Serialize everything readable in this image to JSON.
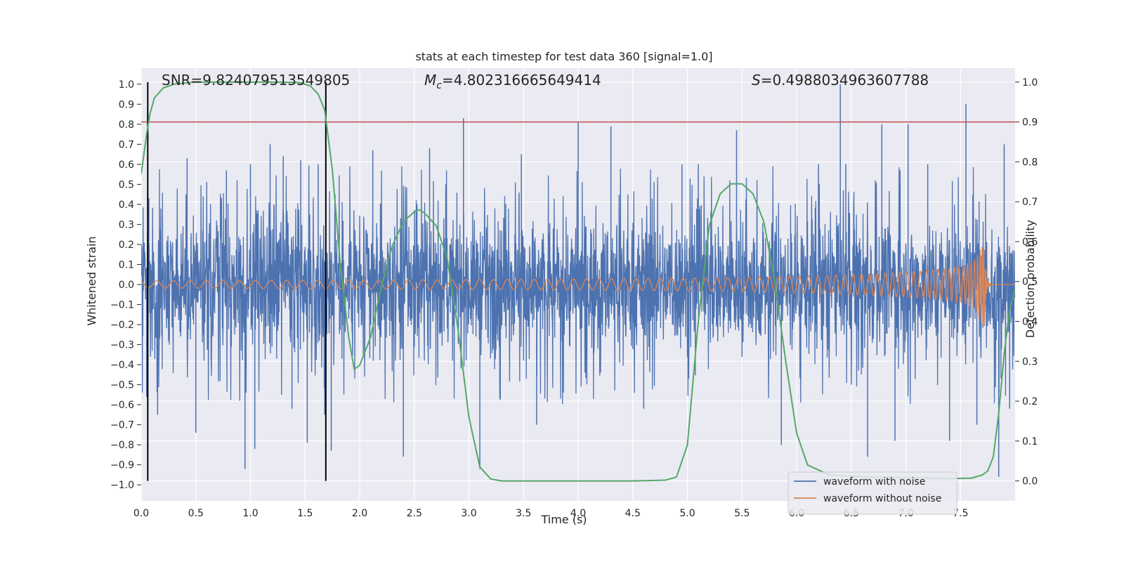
{
  "chart_data": {
    "type": "line",
    "title": "stats at each timestep for test data 360 [signal=1.0]",
    "xlabel": "Time (s)",
    "ylabel": "Whitened strain",
    "y2label": "Detection probability",
    "xlim": [
      0.0,
      8.0
    ],
    "ylim": [
      -1.08,
      1.08
    ],
    "y2lim": [
      -0.05,
      1.035
    ],
    "x_ticks": [
      0.0,
      0.5,
      1.0,
      1.5,
      2.0,
      2.5,
      3.0,
      3.5,
      4.0,
      4.5,
      5.0,
      5.5,
      6.0,
      6.5,
      7.0,
      7.5
    ],
    "x_tick_labels": [
      "0.0",
      "0.5",
      "1.0",
      "1.5",
      "2.0",
      "2.5",
      "3.0",
      "3.5",
      "4.0",
      "4.5",
      "5.0",
      "5.5",
      "6.0",
      "6.5",
      "7.0",
      "7.5"
    ],
    "y_ticks": [
      -1.0,
      -0.9,
      -0.8,
      -0.7,
      -0.6,
      -0.5,
      -0.4,
      -0.3,
      -0.2,
      -0.1,
      0.0,
      0.1,
      0.2,
      0.3,
      0.4,
      0.5,
      0.6,
      0.7,
      0.8,
      0.9,
      1.0
    ],
    "y_tick_labels": [
      "−1.0",
      "−0.9",
      "−0.8",
      "−0.7",
      "−0.6",
      "−0.5",
      "−0.4",
      "−0.3",
      "−0.2",
      "−0.1",
      "0.0",
      "0.1",
      "0.2",
      "0.3",
      "0.4",
      "0.5",
      "0.6",
      "0.7",
      "0.8",
      "0.9",
      "1.0"
    ],
    "y2_ticks": [
      0.0,
      0.1,
      0.2,
      0.3,
      0.4,
      0.5,
      0.6,
      0.7,
      0.8,
      0.9,
      1.0
    ],
    "y2_tick_labels": [
      "0.0",
      "0.1",
      "0.2",
      "0.3",
      "0.4",
      "0.5",
      "0.6",
      "0.7",
      "0.8",
      "0.9",
      "1.0"
    ],
    "annotations": {
      "snr": "SNR=9.824079513549805",
      "mc_symbol": "M",
      "mc_sub": "c",
      "mc_value": "=4.802316665649414",
      "s_symbol": "S",
      "s_value": "=0.4988034963607788"
    },
    "legend": {
      "placement": "lower right",
      "entries": [
        "waveform with noise",
        "waveform without noise"
      ]
    },
    "series": [
      {
        "name": "waveform with noise",
        "color": "#4c72b0",
        "description": "dense whitened strain noise (roughly ±0.45 envelope with spikes up to ~1.0)",
        "spikes": [
          [
            0.05,
            -0.56
          ],
          [
            0.07,
            0.43
          ],
          [
            0.15,
            -0.65
          ],
          [
            0.42,
            0.63
          ],
          [
            0.5,
            -0.74
          ],
          [
            0.78,
            0.57
          ],
          [
            0.95,
            -0.92
          ],
          [
            1.0,
            0.6
          ],
          [
            1.04,
            -0.82
          ],
          [
            1.18,
            0.7
          ],
          [
            1.3,
            0.64
          ],
          [
            1.38,
            -0.62
          ],
          [
            1.46,
            0.62
          ],
          [
            1.52,
            -0.79
          ],
          [
            1.62,
            0.6
          ],
          [
            1.68,
            -0.65
          ],
          [
            1.74,
            -0.83
          ],
          [
            2.12,
            0.67
          ],
          [
            2.4,
            -0.86
          ],
          [
            2.64,
            0.68
          ],
          [
            2.95,
            0.83
          ],
          [
            3.1,
            -0.92
          ],
          [
            3.48,
            0.65
          ],
          [
            3.62,
            -0.7
          ],
          [
            4.0,
            0.81
          ],
          [
            4.3,
            0.79
          ],
          [
            4.6,
            -0.62
          ],
          [
            4.95,
            0.6
          ],
          [
            5.1,
            0.6
          ],
          [
            5.45,
            0.77
          ],
          [
            5.86,
            -0.8
          ],
          [
            6.2,
            0.6
          ],
          [
            6.4,
            1.0
          ],
          [
            6.45,
            0.6
          ],
          [
            6.65,
            -0.86
          ],
          [
            6.78,
            0.8
          ],
          [
            6.9,
            -0.78
          ],
          [
            7.02,
            0.8
          ],
          [
            7.2,
            0.6
          ],
          [
            7.4,
            -0.78
          ],
          [
            7.55,
            0.9
          ],
          [
            7.65,
            -0.7
          ],
          [
            7.85,
            -0.96
          ],
          [
            7.9,
            0.7
          ],
          [
            7.95,
            -0.62
          ]
        ]
      },
      {
        "name": "waveform without noise",
        "color": "#dd8452",
        "description": "inspiral chirp: amplitude ~0.02 at t=0 rising to ~0.2 at merger t~7.72 s, then ringdown",
        "envelope_x": [
          0.0,
          1.0,
          2.0,
          3.0,
          4.0,
          5.0,
          5.5,
          6.0,
          6.5,
          7.0,
          7.3,
          7.5,
          7.6,
          7.65,
          7.7,
          7.72
        ],
        "envelope_y": [
          0.018,
          0.02,
          0.022,
          0.025,
          0.028,
          0.032,
          0.036,
          0.042,
          0.05,
          0.062,
          0.075,
          0.09,
          0.11,
          0.14,
          0.2,
          0.21
        ],
        "merger_time": 7.72
      },
      {
        "name": "detection probability",
        "color": "#55a868",
        "axis": "right",
        "x": [
          0.0,
          0.05,
          0.08,
          0.12,
          0.2,
          0.3,
          0.5,
          0.8,
          1.2,
          1.45,
          1.55,
          1.62,
          1.68,
          1.75,
          1.82,
          1.9,
          1.95,
          2.0,
          2.1,
          2.2,
          2.3,
          2.4,
          2.5,
          2.55,
          2.6,
          2.7,
          2.8,
          2.9,
          3.0,
          3.1,
          3.2,
          3.3,
          3.5,
          4.0,
          4.5,
          4.8,
          4.9,
          5.0,
          5.1,
          5.2,
          5.3,
          5.4,
          5.5,
          5.6,
          5.7,
          5.8,
          5.9,
          6.0,
          6.1,
          6.3,
          6.6,
          7.0,
          7.4,
          7.6,
          7.7,
          7.75,
          7.8,
          7.85,
          7.9,
          7.95,
          8.0
        ],
        "y": [
          0.77,
          0.87,
          0.92,
          0.96,
          0.985,
          0.995,
          1.0,
          1.0,
          1.0,
          0.999,
          0.99,
          0.97,
          0.93,
          0.78,
          0.55,
          0.36,
          0.28,
          0.29,
          0.36,
          0.49,
          0.59,
          0.65,
          0.675,
          0.68,
          0.67,
          0.64,
          0.56,
          0.38,
          0.16,
          0.035,
          0.005,
          0.0,
          0.0,
          0.0,
          0.0,
          0.002,
          0.01,
          0.09,
          0.4,
          0.64,
          0.72,
          0.745,
          0.745,
          0.72,
          0.65,
          0.5,
          0.3,
          0.12,
          0.04,
          0.015,
          0.01,
          0.008,
          0.006,
          0.007,
          0.015,
          0.025,
          0.06,
          0.17,
          0.32,
          0.43,
          0.48
        ]
      }
    ],
    "hlines": [
      {
        "axis": "right",
        "y": 0.9,
        "color": "#c44e52"
      }
    ],
    "vlines": [
      {
        "x": 0.06,
        "color": "#000000"
      },
      {
        "x": 1.69,
        "color": "#000000"
      }
    ]
  }
}
